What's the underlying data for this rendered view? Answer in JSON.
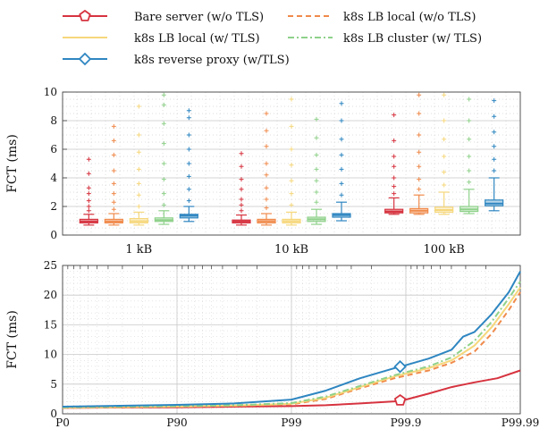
{
  "legend": {
    "items": [
      {
        "name": "Bare server (w/o TLS)",
        "color": "#d6333f",
        "dash": "solid",
        "marker": "pentagon"
      },
      {
        "name": "k8s LB local (w/o TLS)",
        "color": "#f08a4b",
        "dash": "dashed",
        "marker": "none"
      },
      {
        "name": "k8s LB local (w/ TLS)",
        "color": "#f6d77b",
        "dash": "solid",
        "marker": "none"
      },
      {
        "name": "k8s LB cluster (w/ TLS)",
        "color": "#8fd18a",
        "dash": "dashdot",
        "marker": "none"
      },
      {
        "name": "k8s reverse proxy (w/TLS)",
        "color": "#2e86c1",
        "dash": "solid",
        "marker": "diamond"
      }
    ]
  },
  "chart_data": [
    {
      "type": "box",
      "ylabel": "FCT (ms)",
      "ylim": [
        0,
        10
      ],
      "yticks": [
        "0",
        "2",
        "4",
        "6",
        "8",
        "10"
      ],
      "categories": [
        "1 kB",
        "10 kB",
        "100 kB"
      ],
      "grid": true,
      "series": [
        {
          "name": "Bare server (w/o TLS)",
          "color": "#d6333f",
          "boxes": [
            {
              "q1": 0.85,
              "median": 0.95,
              "q3": 1.1,
              "wlo": 0.7,
              "whi": 1.45,
              "outliers": [
                1.7,
                2.0,
                2.4,
                2.9,
                3.3,
                4.3,
                5.3
              ]
            },
            {
              "q1": 0.85,
              "median": 0.95,
              "q3": 1.05,
              "wlo": 0.7,
              "whi": 1.4,
              "outliers": [
                1.7,
                2.1,
                2.5,
                3.2,
                3.9,
                4.8,
                5.7
              ]
            },
            {
              "q1": 1.55,
              "median": 1.65,
              "q3": 1.8,
              "wlo": 1.45,
              "whi": 2.6,
              "outliers": [
                2.9,
                3.4,
                4.0,
                4.8,
                5.5,
                6.6,
                8.4
              ]
            }
          ]
        },
        {
          "name": "k8s LB local (w/o TLS)",
          "color": "#f08a4b",
          "boxes": [
            {
              "q1": 0.85,
              "median": 0.95,
              "q3": 1.1,
              "wlo": 0.7,
              "whi": 1.5,
              "outliers": [
                1.8,
                2.3,
                2.9,
                3.6,
                4.5,
                5.6,
                6.6,
                7.6
              ]
            },
            {
              "q1": 0.85,
              "median": 0.97,
              "q3": 1.1,
              "wlo": 0.7,
              "whi": 1.5,
              "outliers": [
                1.9,
                2.5,
                3.3,
                4.2,
                5.0,
                6.2,
                7.3,
                8.5
              ]
            },
            {
              "q1": 1.55,
              "median": 1.7,
              "q3": 1.85,
              "wlo": 1.45,
              "whi": 2.8,
              "outliers": [
                3.2,
                3.9,
                4.8,
                5.8,
                7.0,
                8.5,
                9.8
              ]
            }
          ]
        },
        {
          "name": "k8s LB local (w/ TLS)",
          "color": "#f6d77b",
          "boxes": [
            {
              "q1": 0.85,
              "median": 0.97,
              "q3": 1.15,
              "wlo": 0.7,
              "whi": 1.6,
              "outliers": [
                2.0,
                2.8,
                3.6,
                4.6,
                5.8,
                7.0,
                9.0
              ]
            },
            {
              "q1": 0.85,
              "median": 0.97,
              "q3": 1.1,
              "wlo": 0.7,
              "whi": 1.6,
              "outliers": [
                2.1,
                2.9,
                3.8,
                4.9,
                6.0,
                7.6,
                9.5
              ]
            },
            {
              "q1": 1.6,
              "median": 1.75,
              "q3": 1.95,
              "wlo": 1.45,
              "whi": 3.0,
              "outliers": [
                3.5,
                4.4,
                5.5,
                6.7,
                8.0,
                9.8
              ]
            }
          ]
        },
        {
          "name": "k8s LB cluster (w/ TLS)",
          "color": "#8fd18a",
          "boxes": [
            {
              "q1": 0.95,
              "median": 1.05,
              "q3": 1.2,
              "wlo": 0.75,
              "whi": 1.7,
              "outliers": [
                2.1,
                2.9,
                3.9,
                5.0,
                6.4,
                7.8,
                9.1,
                9.8
              ]
            },
            {
              "q1": 0.95,
              "median": 1.1,
              "q3": 1.25,
              "wlo": 0.75,
              "whi": 1.8,
              "outliers": [
                2.3,
                3.0,
                3.8,
                4.6,
                5.6,
                6.8,
                8.1
              ]
            },
            {
              "q1": 1.65,
              "median": 1.8,
              "q3": 2.0,
              "wlo": 1.5,
              "whi": 3.2,
              "outliers": [
                3.7,
                4.5,
                5.5,
                6.7,
                8.0,
                9.5
              ]
            }
          ]
        },
        {
          "name": "k8s reverse proxy (w/TLS)",
          "color": "#2e86c1",
          "boxes": [
            {
              "q1": 1.2,
              "median": 1.35,
              "q3": 1.45,
              "wlo": 0.95,
              "whi": 2.0,
              "outliers": [
                2.4,
                3.2,
                4.1,
                5.0,
                6.0,
                7.0,
                8.2,
                8.7
              ]
            },
            {
              "q1": 1.25,
              "median": 1.4,
              "q3": 1.5,
              "wlo": 1.0,
              "whi": 2.3,
              "outliers": [
                2.8,
                3.6,
                4.6,
                5.6,
                6.7,
                8.0,
                9.2
              ]
            },
            {
              "q1": 2.05,
              "median": 2.2,
              "q3": 2.45,
              "wlo": 1.7,
              "whi": 4.0,
              "outliers": [
                4.5,
                5.3,
                6.2,
                7.2,
                8.3,
                9.4
              ]
            }
          ]
        }
      ]
    },
    {
      "type": "line",
      "ylabel": "FCT (ms)",
      "ylim": [
        0,
        25
      ],
      "yticks": [
        "0",
        "5",
        "10",
        "15",
        "20",
        "25"
      ],
      "xscale": "log-percentile",
      "xlim": [
        0,
        4
      ],
      "xticks": [
        "P0",
        "P90",
        "P99",
        "P99.9",
        "P99.99"
      ],
      "grid": true,
      "series": [
        {
          "name": "Bare server (w/o TLS)",
          "color": "#d6333f",
          "dash": "solid",
          "marker": "pentagon",
          "marker_x": 2.95,
          "points": [
            [
              0,
              1.0
            ],
            [
              0.5,
              1.05
            ],
            [
              1,
              1.1
            ],
            [
              1.5,
              1.2
            ],
            [
              2,
              1.3
            ],
            [
              2.3,
              1.45
            ],
            [
              2.6,
              1.75
            ],
            [
              2.9,
              2.1
            ],
            [
              3.0,
              2.4
            ],
            [
              3.2,
              3.4
            ],
            [
              3.4,
              4.5
            ],
            [
              3.6,
              5.3
            ],
            [
              3.8,
              6.0
            ],
            [
              4.0,
              7.3
            ]
          ]
        },
        {
          "name": "k8s LB local (w/o TLS)",
          "color": "#f08a4b",
          "dash": "dashed",
          "marker": "none",
          "points": [
            [
              0,
              1.0
            ],
            [
              0.5,
              1.1
            ],
            [
              1,
              1.2
            ],
            [
              1.5,
              1.35
            ],
            [
              2,
              1.6
            ],
            [
              2.3,
              2.5
            ],
            [
              2.6,
              4.3
            ],
            [
              2.9,
              6.0
            ],
            [
              3.2,
              7.3
            ],
            [
              3.4,
              8.6
            ],
            [
              3.6,
              10.5
            ],
            [
              3.75,
              13.5
            ],
            [
              3.9,
              17.5
            ],
            [
              4.0,
              20.5
            ]
          ]
        },
        {
          "name": "k8s LB local (w/ TLS)",
          "color": "#f6d77b",
          "dash": "solid",
          "marker": "none",
          "points": [
            [
              0,
              1.05
            ],
            [
              0.5,
              1.15
            ],
            [
              1,
              1.25
            ],
            [
              1.5,
              1.4
            ],
            [
              2,
              1.7
            ],
            [
              2.3,
              2.7
            ],
            [
              2.6,
              4.5
            ],
            [
              2.9,
              6.3
            ],
            [
              3.2,
              7.7
            ],
            [
              3.4,
              9.0
            ],
            [
              3.6,
              11.5
            ],
            [
              3.75,
              14.6
            ],
            [
              3.9,
              18.5
            ],
            [
              4.0,
              21.3
            ]
          ]
        },
        {
          "name": "k8s LB cluster (w/ TLS)",
          "color": "#8fd18a",
          "dash": "dashdot",
          "marker": "none",
          "points": [
            [
              0,
              1.1
            ],
            [
              0.5,
              1.2
            ],
            [
              1,
              1.3
            ],
            [
              1.5,
              1.45
            ],
            [
              2,
              1.8
            ],
            [
              2.3,
              2.9
            ],
            [
              2.6,
              4.7
            ],
            [
              2.9,
              6.5
            ],
            [
              3.2,
              8.0
            ],
            [
              3.4,
              9.5
            ],
            [
              3.6,
              12.3
            ],
            [
              3.75,
              15.5
            ],
            [
              3.9,
              19.5
            ],
            [
              4.0,
              22.3
            ]
          ]
        },
        {
          "name": "k8s reverse proxy (w/TLS)",
          "color": "#2e86c1",
          "dash": "solid",
          "marker": "diamond",
          "marker_x": 2.95,
          "points": [
            [
              0,
              1.2
            ],
            [
              0.5,
              1.35
            ],
            [
              1,
              1.5
            ],
            [
              1.5,
              1.75
            ],
            [
              2,
              2.4
            ],
            [
              2.3,
              3.9
            ],
            [
              2.6,
              6.0
            ],
            [
              2.9,
              7.7
            ],
            [
              3.0,
              8.2
            ],
            [
              3.2,
              9.3
            ],
            [
              3.4,
              10.8
            ],
            [
              3.5,
              13.0
            ],
            [
              3.6,
              13.8
            ],
            [
              3.75,
              16.8
            ],
            [
              3.9,
              20.5
            ],
            [
              4.0,
              24.0
            ]
          ]
        }
      ]
    }
  ]
}
